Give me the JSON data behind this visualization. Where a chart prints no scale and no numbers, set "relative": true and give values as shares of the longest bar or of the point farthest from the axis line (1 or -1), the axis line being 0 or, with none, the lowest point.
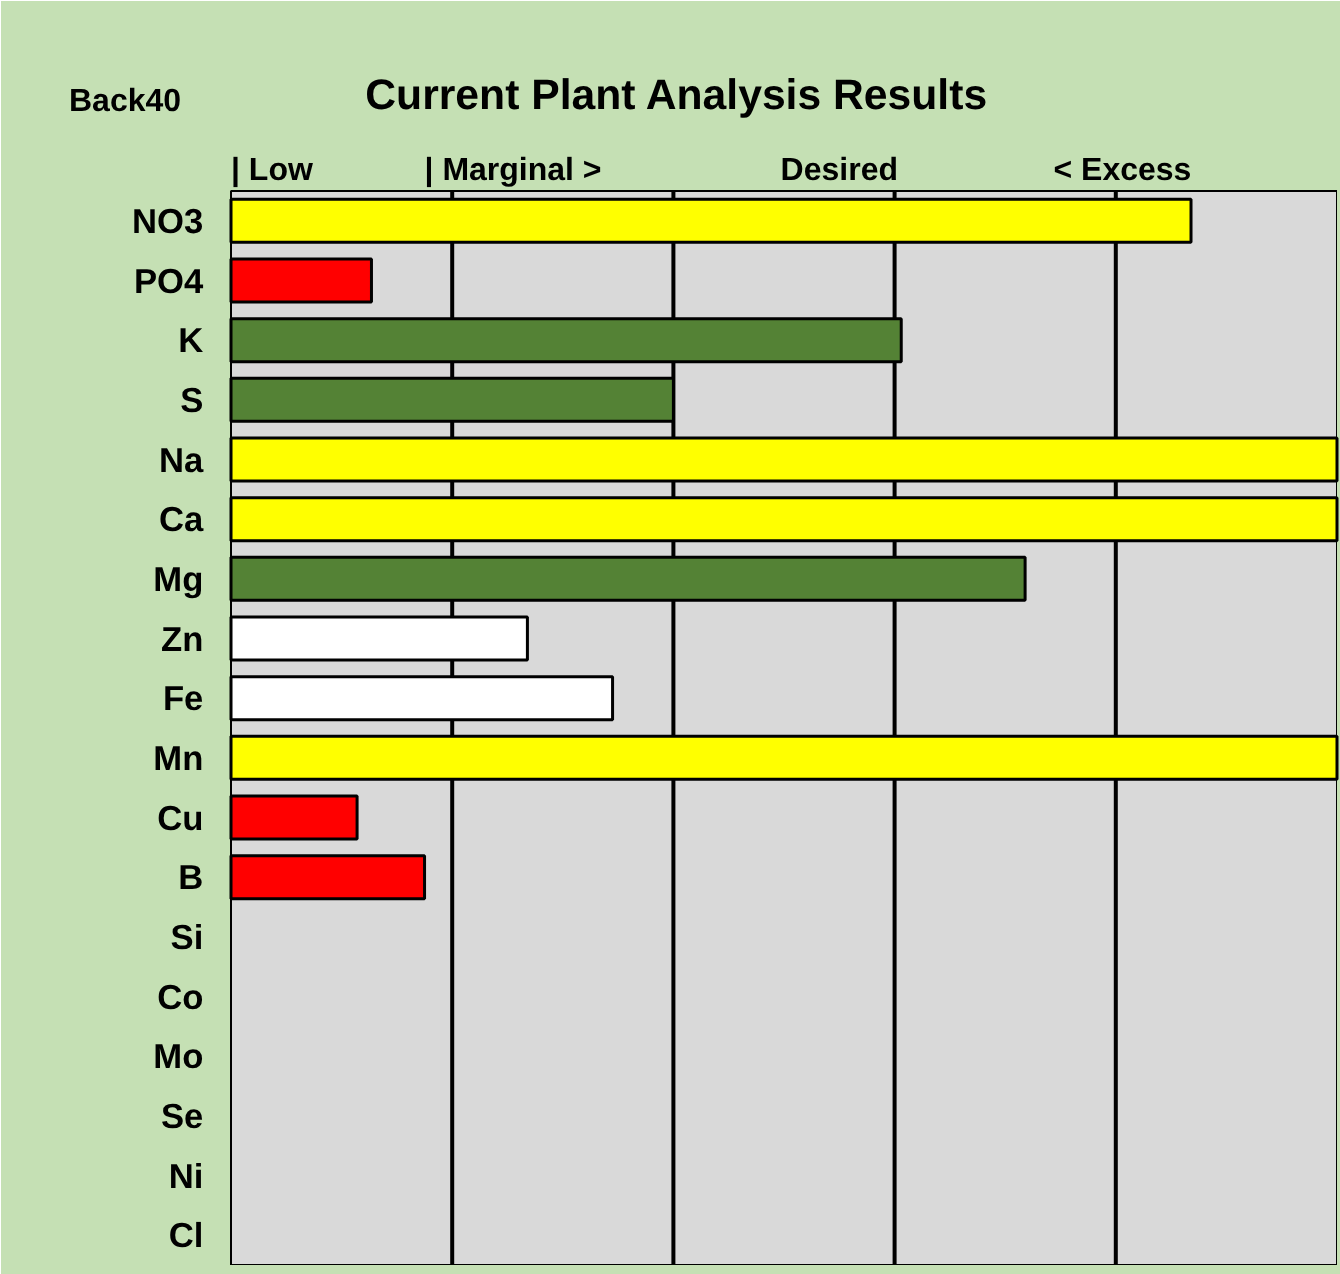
{
  "chart_data": {
    "type": "bar",
    "orientation": "horizontal",
    "relative": true,
    "title": "Current Plant Analysis Results",
    "annotations": [
      "Back40",
      "|  Low",
      "| Marginal  >",
      "Desired",
      "<  Excess"
    ],
    "categories": [
      "NO3",
      "PO4",
      "K",
      "S",
      "Na",
      "Ca",
      "Mg",
      "Zn",
      "Fe",
      "Mn",
      "Cu",
      "B",
      "Si",
      "Co",
      "Mo",
      "Se",
      "Ni",
      "Cl"
    ],
    "values": [
      0.868,
      0.127,
      0.606,
      0.4,
      1,
      1,
      0.718,
      0.268,
      0.345,
      1,
      0.114,
      0.175,
      null,
      null,
      null,
      null,
      null,
      null
    ],
    "colors": [
      "#ffff00",
      "#ff0000",
      "#548235",
      "#548235",
      "#ffff00",
      "#ffff00",
      "#548235",
      "#ffffff",
      "#ffffff",
      "#ffff00",
      "#ff0000",
      "#ff0000",
      "#ffffff",
      "#ffffff",
      "#ffffff",
      "#ffffff",
      "#ffffff",
      "#ffffff"
    ],
    "grid": "x"
  }
}
